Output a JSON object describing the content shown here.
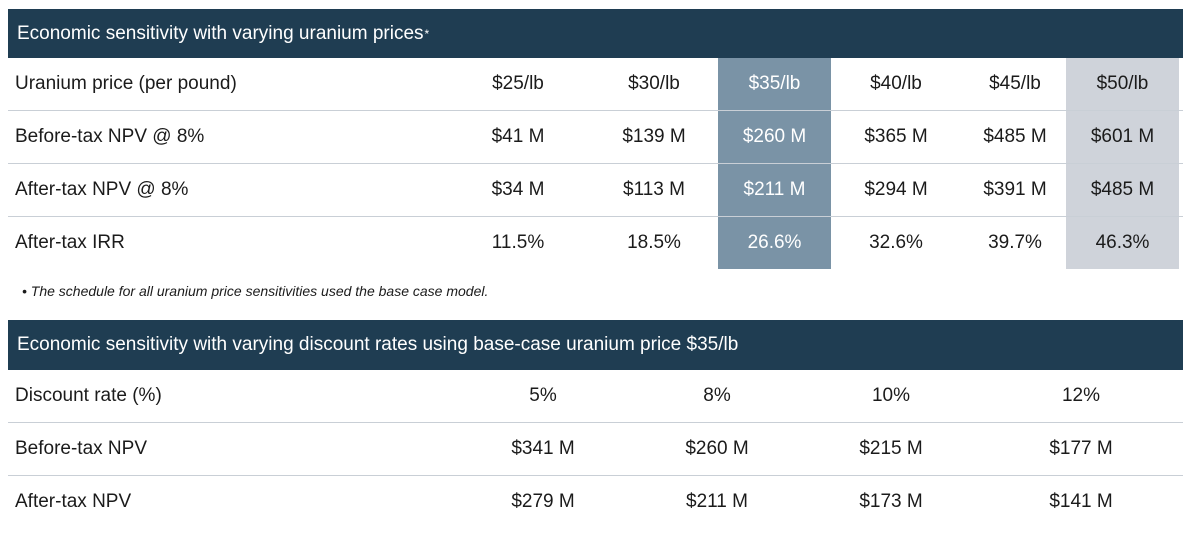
{
  "table1": {
    "title": "Economic sensitivity with varying uranium prices",
    "title_mark": "*",
    "rows": [
      {
        "label": "Uranium price (per pound)",
        "cells": [
          "$25/lb",
          "$30/lb",
          "$35/lb",
          "$40/lb",
          "$45/lb",
          "$50/lb"
        ]
      },
      {
        "label": "Before-tax NPV @ 8%",
        "cells": [
          "$41 M",
          "$139 M",
          "$260 M",
          "$365 M",
          "$485 M",
          "$601 M"
        ]
      },
      {
        "label": "After-tax NPV @ 8%",
        "cells": [
          "$34 M",
          "$113 M",
          "$211 M",
          "$294 M",
          "$391 M",
          "$485 M"
        ]
      },
      {
        "label": "After-tax IRR",
        "cells": [
          "11.5%",
          "18.5%",
          "26.6%",
          "32.6%",
          "39.7%",
          "46.3%"
        ]
      }
    ],
    "highlight_colors": {
      "dark": "#7a93a6",
      "light": "#cfd3da"
    }
  },
  "footnote": "• The schedule for all uranium price sensitivities used the base case model.",
  "table2": {
    "title": "Economic sensitivity with varying discount rates using base-case uranium price $35/lb",
    "rows": [
      {
        "label": "Discount rate (%)",
        "cells": [
          "5%",
          "8%",
          "10%",
          "12%"
        ]
      },
      {
        "label": "Before-tax NPV",
        "cells": [
          "$341 M",
          "$260 M",
          "$215 M",
          "$177 M"
        ]
      },
      {
        "label": "After-tax NPV",
        "cells": [
          "$279 M",
          "$211 M",
          "$173 M",
          "$141 M"
        ]
      }
    ]
  },
  "colors": {
    "header_bg": "#1f3d52",
    "header_text": "#ffffff",
    "row_divider": "#c9cfd6"
  }
}
